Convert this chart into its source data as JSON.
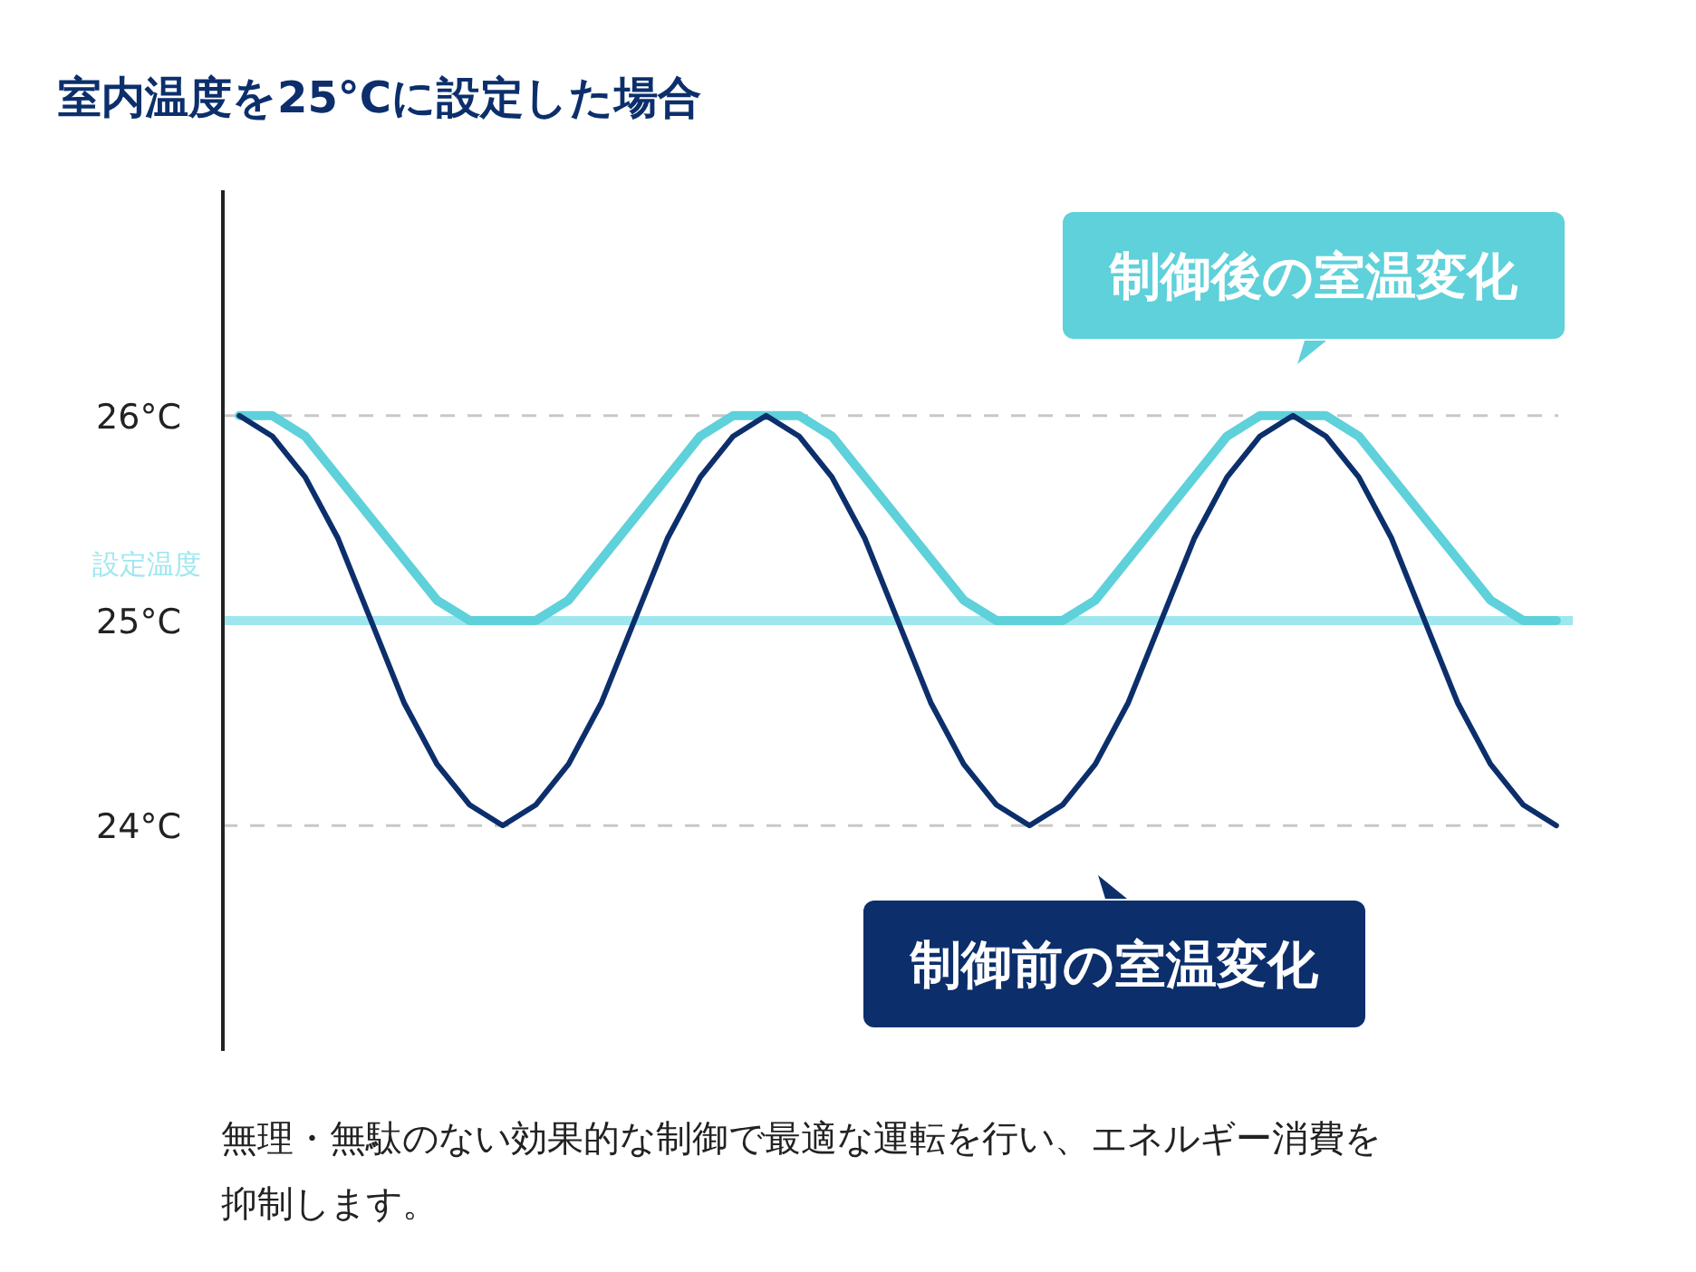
{
  "chart_data": {
    "type": "line",
    "title": "室内温度を25°Cに設定した場合",
    "categories": [
      null,
      null,
      null,
      null,
      null,
      null,
      null,
      null,
      null,
      null,
      null,
      null,
      null,
      null,
      null,
      null,
      null,
      null,
      null,
      null,
      null,
      null,
      null,
      null,
      null,
      null,
      null,
      null,
      null,
      null,
      null,
      null,
      null,
      null,
      null,
      null,
      null,
      null,
      null,
      null,
      null
    ],
    "series": [
      {
        "name": "制御後の室温変化",
        "color": "#5ed1da",
        "values": [
          26,
          26,
          25.9,
          25.7,
          25.5,
          25.3,
          25.1,
          25,
          25,
          25,
          25.1,
          25.3,
          25.5,
          25.7,
          25.9,
          26,
          26,
          26,
          25.9,
          25.7,
          25.5,
          25.3,
          25.1,
          25,
          25,
          25,
          25.1,
          25.3,
          25.5,
          25.7,
          25.9,
          26,
          26,
          26,
          25.9,
          25.7,
          25.5,
          25.3,
          25.1,
          25,
          25
        ]
      },
      {
        "name": "制御前の室温変化",
        "color": "#0c2f6c",
        "values": [
          26,
          25.9,
          25.7,
          25.4,
          25,
          24.6,
          24.3,
          24.1,
          24,
          24.1,
          24.3,
          24.6,
          25,
          25.4,
          25.7,
          25.9,
          26,
          25.9,
          25.7,
          25.4,
          25,
          24.6,
          24.3,
          24.1,
          24,
          24.1,
          24.3,
          24.6,
          25,
          25.4,
          25.7,
          25.9,
          26,
          25.9,
          25.7,
          25.4,
          25,
          24.6,
          24.3,
          24.1,
          24
        ]
      }
    ],
    "ylim": [
      22.9,
      27.1
    ],
    "yticks": [
      {
        "value": 24,
        "label": "24°C"
      },
      {
        "value": 25,
        "label": "25°C"
      },
      {
        "value": 26,
        "label": "26°C"
      }
    ],
    "grid": "y",
    "tick_labels": "y",
    "legend": "right",
    "ref_lines": [
      {
        "axis": "y",
        "value": 25,
        "label": "設定温度",
        "color": "#9ee7ef"
      }
    ],
    "annotations": [
      "無理・無駄のない効果的な制御で最適な運転を行い、エネルギー消費を抑制します。"
    ]
  }
}
